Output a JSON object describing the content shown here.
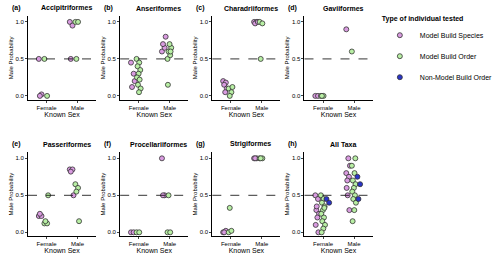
{
  "chart_data": {
    "type": "scatter",
    "legend": "right",
    "legend_title": "Type of individual tested",
    "x_label": "Known Sex",
    "y_label": "Male Probability",
    "categories": [
      "Female",
      "Male"
    ],
    "ylim": [
      -0.05,
      1.08
    ],
    "yticks": [
      {
        "value": 0,
        "label": "0.0"
      },
      {
        "value": 0.5,
        "label": "0.5"
      },
      {
        "value": 1,
        "label": "1.0"
      }
    ],
    "reference_line": 0.5,
    "line_style": "dashed",
    "series": [
      {
        "name": "Model Build Species",
        "color": "#d99be0",
        "marker": "circle"
      },
      {
        "name": "Model Build Order",
        "color": "#b8efa4",
        "marker": "circle"
      },
      {
        "name": "Non-Model Build Order",
        "color": "#2a35c8",
        "marker": "circle"
      }
    ],
    "panels": [
      {
        "label": "(a)",
        "title": "Accipitriformes",
        "series": [
          {
            "name": "Model Build Species",
            "values": [
              [
                0.5,
                0.02,
                0.0
              ],
              [
                1.0,
                0.95,
                0.5
              ]
            ]
          },
          {
            "name": "Model Build Order",
            "values": [
              [
                0.5,
                0.0
              ],
              [
                1.0,
                1.0,
                0.5
              ]
            ]
          }
        ]
      },
      {
        "label": "(b)",
        "title": "Anseriformes",
        "series": [
          {
            "name": "Model Build Species",
            "values": [
              [
                0.45,
                0.3,
                0.12,
                0.2
              ],
              [
                0.6,
                0.65,
                0.7,
                0.8
              ]
            ]
          },
          {
            "name": "Model Build Order",
            "values": [
              [
                0.5,
                0.45,
                0.4,
                0.35,
                0.3,
                0.25,
                0.22,
                0.15,
                0.1,
                0.05
              ],
              [
                0.5,
                0.55,
                0.6,
                0.65,
                0.7,
                0.15,
                0.6
              ]
            ]
          }
        ]
      },
      {
        "label": "(c)",
        "title": "Charadriiformes",
        "series": [
          {
            "name": "Model Build Species",
            "values": [
              [
                0.2,
                0.18,
                0.15,
                0.1,
                0.05
              ],
              [
                1.0,
                1.0,
                0.98,
                1.0
              ]
            ]
          },
          {
            "name": "Model Build Order",
            "values": [
              [
                0.1,
                0.05,
                0.0,
                0.12
              ],
              [
                1.0,
                0.98,
                0.5
              ]
            ]
          }
        ]
      },
      {
        "label": "(d)",
        "title": "Gaviiformes",
        "series": [
          {
            "name": "Model Build Species",
            "values": [
              [
                0.0,
                0.0
              ],
              [
                0.9
              ]
            ]
          },
          {
            "name": "Model Build Order",
            "values": [
              [
                0.0,
                0.0,
                0.0
              ],
              [
                0.6
              ]
            ]
          }
        ]
      },
      {
        "label": "(e)",
        "title": "Passeriformes",
        "series": [
          {
            "name": "Model Build Species",
            "values": [
              [
                0.22,
                0.22,
                0.25
              ],
              [
                0.85,
                0.85,
                0.82,
                0.5
              ]
            ]
          },
          {
            "name": "Model Build Order",
            "values": [
              [
                0.12,
                0.12,
                0.15,
                0.5
              ],
              [
                0.65,
                0.6,
                0.55,
                0.15
              ]
            ]
          }
        ]
      },
      {
        "label": "(f)",
        "title": "Procellariiformes",
        "series": [
          {
            "name": "Model Build Species",
            "values": [
              [
                0.0,
                0.0
              ],
              [
                1.0,
                0.5,
                0.5
              ]
            ]
          },
          {
            "name": "Model Build Order",
            "values": [
              [
                0.0,
                0.0
              ],
              [
                0.0,
                0.0,
                0.5
              ]
            ]
          }
        ]
      },
      {
        "label": "(g)",
        "title": "Strigiformes",
        "series": [
          {
            "name": "Model Build Species",
            "values": [
              [
                0.0,
                0.02,
                0.0
              ],
              [
                1.0,
                1.0,
                1.0
              ]
            ]
          },
          {
            "name": "Model Build Order",
            "values": [
              [
                0.0,
                0.02,
                0.33
              ],
              [
                1.0,
                1.0,
                1.0
              ]
            ]
          }
        ]
      },
      {
        "label": "(h)",
        "title": "All Taxa",
        "series": [
          {
            "name": "Model Build Species",
            "values": [
              [
                0.5,
                0.45,
                0.3,
                0.25,
                0.2,
                0.1,
                0.0,
                0.35
              ],
              [
                0.8,
                0.75,
                0.7,
                0.9,
                1.0,
                0.6,
                0.3,
                0.5
              ]
            ]
          },
          {
            "name": "Model Build Order",
            "values": [
              [
                0.5,
                0.45,
                0.4,
                0.35,
                0.3,
                0.25,
                0.2,
                0.15,
                0.1,
                0.05,
                0.0,
                0.33
              ],
              [
                0.9,
                0.8,
                0.7,
                0.65,
                0.6,
                0.55,
                0.5,
                0.45,
                0.4,
                0.3,
                0.15,
                1.0
              ]
            ]
          },
          {
            "name": "Non-Model Build Order",
            "values": [
              [
                0.45,
                0.4
              ],
              [
                0.75,
                0.65,
                0.45
              ]
            ]
          }
        ]
      }
    ]
  }
}
